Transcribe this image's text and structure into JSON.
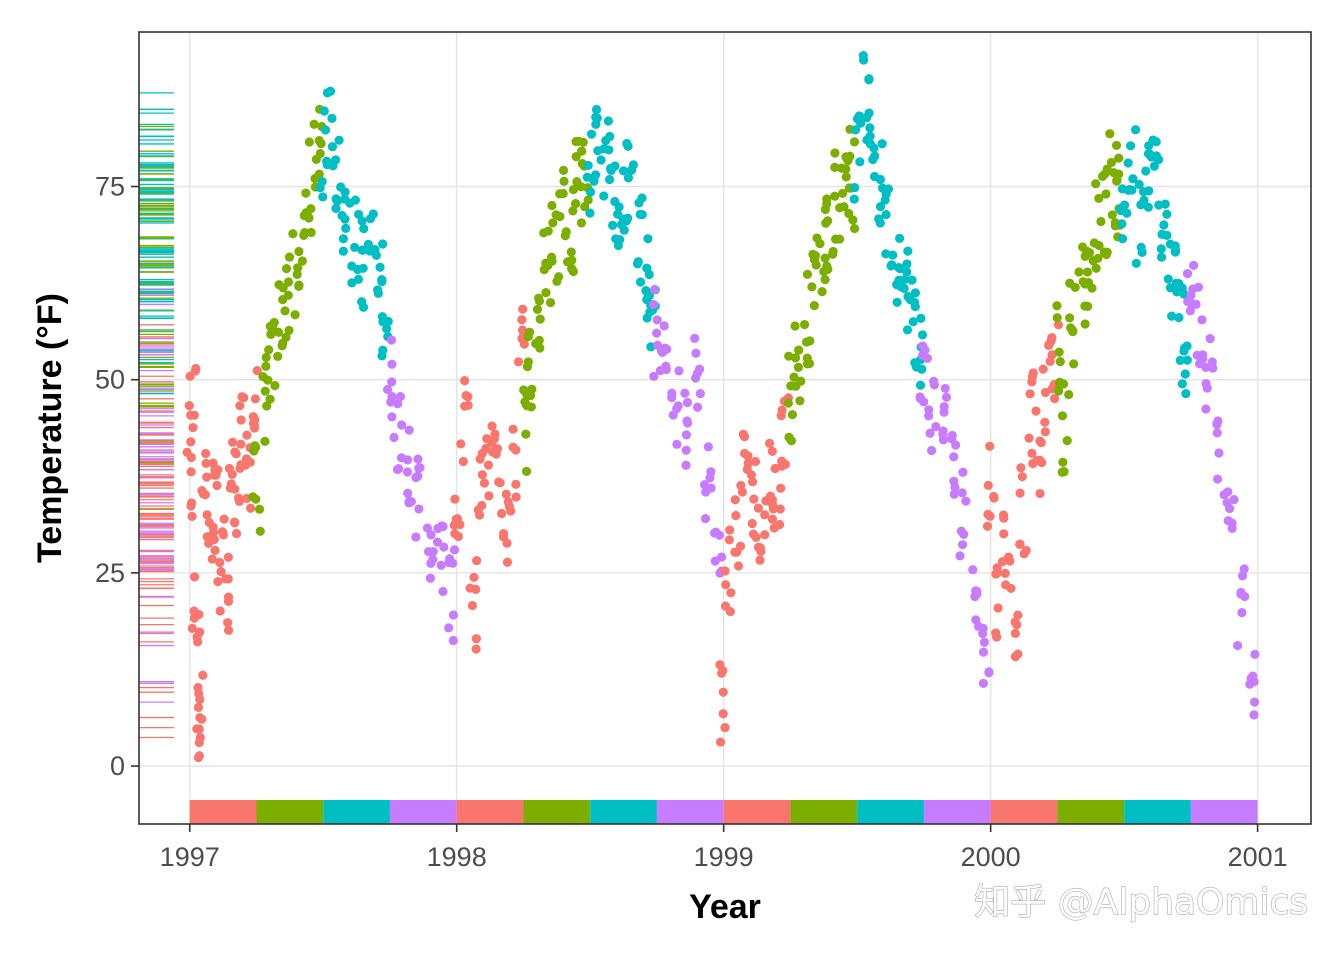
{
  "watermark": "知乎 @AlphaOmics",
  "colors": {
    "winter": "#F8766D",
    "spring": "#7CAE00",
    "summer": "#00BFC4",
    "fall": "#C77CFF",
    "grid": "#e6e6e6",
    "frame": "#333333"
  },
  "chart_data": {
    "type": "scatter",
    "title": "",
    "xlabel": "Year",
    "ylabel": "Temperature (°F)",
    "xlim": [
      1996.81,
      2001.2
    ],
    "ylim": [
      -7.5,
      95
    ],
    "x_ticks": [
      1997,
      1998,
      1999,
      2000,
      2001
    ],
    "x_tick_labels": [
      "1997",
      "1998",
      "1999",
      "2000",
      "2001"
    ],
    "y_ticks": [
      0,
      25,
      50,
      75
    ],
    "y_tick_labels": [
      "0",
      "25",
      "50",
      "75"
    ],
    "grid": true,
    "legend": "none",
    "rug": [
      "left-rug",
      "bottom-season-bar"
    ],
    "season_order": [
      "winter",
      "spring",
      "summer",
      "fall"
    ],
    "season_colors": [
      "#F8766D",
      "#7CAE00",
      "#00BFC4",
      "#C77CFF"
    ],
    "daily_temperature_points": [
      [
        1997.0,
        36,
        0
      ],
      [
        1997.01,
        47,
        0
      ],
      [
        1997.02,
        20,
        0
      ],
      [
        1997.03,
        6,
        0
      ],
      [
        1997.04,
        12,
        0
      ],
      [
        1997.06,
        35,
        0
      ],
      [
        1997.08,
        28,
        0
      ],
      [
        1997.1,
        34,
        0
      ],
      [
        1997.12,
        26,
        0
      ],
      [
        1997.14,
        22,
        0
      ],
      [
        1997.16,
        38,
        0
      ],
      [
        1997.18,
        36,
        0
      ],
      [
        1997.2,
        42,
        0
      ],
      [
        1997.22,
        39,
        0
      ],
      [
        1997.24,
        46,
        0
      ],
      [
        1997.25,
        36,
        1
      ],
      [
        1997.28,
        47,
        1
      ],
      [
        1997.31,
        52,
        1
      ],
      [
        1997.34,
        58,
        1
      ],
      [
        1997.37,
        61,
        1
      ],
      [
        1997.4,
        63,
        1
      ],
      [
        1997.43,
        69,
        1
      ],
      [
        1997.46,
        75,
        1
      ],
      [
        1997.48,
        81,
        1
      ],
      [
        1997.5,
        79,
        2
      ],
      [
        1997.53,
        83,
        2
      ],
      [
        1997.56,
        76,
        2
      ],
      [
        1997.59,
        71,
        2
      ],
      [
        1997.62,
        68,
        2
      ],
      [
        1997.65,
        65,
        2
      ],
      [
        1997.68,
        67,
        2
      ],
      [
        1997.71,
        62,
        2
      ],
      [
        1997.73,
        59,
        2
      ],
      [
        1997.75,
        50,
        3
      ],
      [
        1997.78,
        44,
        3
      ],
      [
        1997.82,
        40,
        3
      ],
      [
        1997.86,
        34,
        3
      ],
      [
        1997.9,
        30,
        3
      ],
      [
        1997.94,
        27,
        3
      ],
      [
        1997.98,
        22,
        3
      ],
      [
        1998.0,
        33,
        0
      ],
      [
        1998.03,
        44,
        0
      ],
      [
        1998.06,
        21,
        0
      ],
      [
        1998.09,
        35,
        0
      ],
      [
        1998.12,
        39,
        0
      ],
      [
        1998.15,
        42,
        0
      ],
      [
        1998.18,
        31,
        0
      ],
      [
        1998.21,
        38,
        0
      ],
      [
        1998.24,
        58,
        0
      ],
      [
        1998.25,
        44,
        1
      ],
      [
        1998.28,
        52,
        1
      ],
      [
        1998.31,
        58,
        1
      ],
      [
        1998.34,
        64,
        1
      ],
      [
        1998.37,
        68,
        1
      ],
      [
        1998.4,
        73,
        1
      ],
      [
        1998.43,
        70,
        1
      ],
      [
        1998.46,
        78,
        1
      ],
      [
        1998.48,
        76,
        1
      ],
      [
        1998.5,
        77,
        2
      ],
      [
        1998.53,
        82,
        2
      ],
      [
        1998.56,
        78,
        2
      ],
      [
        1998.59,
        74,
        2
      ],
      [
        1998.62,
        72,
        2
      ],
      [
        1998.65,
        76,
        2
      ],
      [
        1998.68,
        68,
        2
      ],
      [
        1998.71,
        63,
        2
      ],
      [
        1998.73,
        58,
        2
      ],
      [
        1998.75,
        56,
        3
      ],
      [
        1998.78,
        52,
        3
      ],
      [
        1998.82,
        47,
        3
      ],
      [
        1998.86,
        44,
        3
      ],
      [
        1998.9,
        50,
        3
      ],
      [
        1998.94,
        38,
        3
      ],
      [
        1998.98,
        26,
        3
      ],
      [
        1999.0,
        8,
        0
      ],
      [
        1999.02,
        25,
        0
      ],
      [
        1999.05,
        31,
        0
      ],
      [
        1999.08,
        40,
        0
      ],
      [
        1999.11,
        35,
        0
      ],
      [
        1999.14,
        29,
        0
      ],
      [
        1999.17,
        37,
        0
      ],
      [
        1999.2,
        33,
        0
      ],
      [
        1999.23,
        44,
        0
      ],
      [
        1999.25,
        48,
        1
      ],
      [
        1999.28,
        52,
        1
      ],
      [
        1999.31,
        58,
        1
      ],
      [
        1999.34,
        63,
        1
      ],
      [
        1999.37,
        67,
        1
      ],
      [
        1999.4,
        70,
        1
      ],
      [
        1999.43,
        74,
        1
      ],
      [
        1999.46,
        78,
        1
      ],
      [
        1999.48,
        75,
        1
      ],
      [
        1999.5,
        79,
        2
      ],
      [
        1999.53,
        86,
        2
      ],
      [
        1999.56,
        81,
        2
      ],
      [
        1999.59,
        75,
        2
      ],
      [
        1999.62,
        70,
        2
      ],
      [
        1999.65,
        66,
        2
      ],
      [
        1999.68,
        62,
        2
      ],
      [
        1999.71,
        58,
        2
      ],
      [
        1999.73,
        55,
        2
      ],
      [
        1999.75,
        50,
        3
      ],
      [
        1999.78,
        46,
        3
      ],
      [
        1999.82,
        44,
        3
      ],
      [
        1999.86,
        38,
        3
      ],
      [
        1999.9,
        33,
        3
      ],
      [
        1999.94,
        24,
        3
      ],
      [
        1999.98,
        14,
        3
      ],
      [
        2000.0,
        37,
        0
      ],
      [
        2000.03,
        22,
        0
      ],
      [
        2000.06,
        28,
        0
      ],
      [
        2000.09,
        20,
        0
      ],
      [
        2000.12,
        33,
        0
      ],
      [
        2000.15,
        45,
        0
      ],
      [
        2000.18,
        40,
        0
      ],
      [
        2000.21,
        49,
        0
      ],
      [
        2000.24,
        52,
        0
      ],
      [
        2000.25,
        54,
        1
      ],
      [
        2000.28,
        44,
        1
      ],
      [
        2000.31,
        58,
        1
      ],
      [
        2000.34,
        62,
        1
      ],
      [
        2000.37,
        64,
        1
      ],
      [
        2000.4,
        70,
        1
      ],
      [
        2000.43,
        72,
        1
      ],
      [
        2000.46,
        76,
        1
      ],
      [
        2000.48,
        74,
        1
      ],
      [
        2000.5,
        72,
        2
      ],
      [
        2000.53,
        77,
        2
      ],
      [
        2000.56,
        70,
        2
      ],
      [
        2000.59,
        75,
        2
      ],
      [
        2000.62,
        78,
        2
      ],
      [
        2000.65,
        69,
        2
      ],
      [
        2000.68,
        63,
        2
      ],
      [
        2000.71,
        58,
        2
      ],
      [
        2000.73,
        54,
        2
      ],
      [
        2000.75,
        62,
        3
      ],
      [
        2000.78,
        56,
        3
      ],
      [
        2000.82,
        50,
        3
      ],
      [
        2000.86,
        40,
        3
      ],
      [
        2000.9,
        32,
        3
      ],
      [
        2000.94,
        20,
        3
      ],
      [
        2000.98,
        10,
        3
      ]
    ]
  }
}
